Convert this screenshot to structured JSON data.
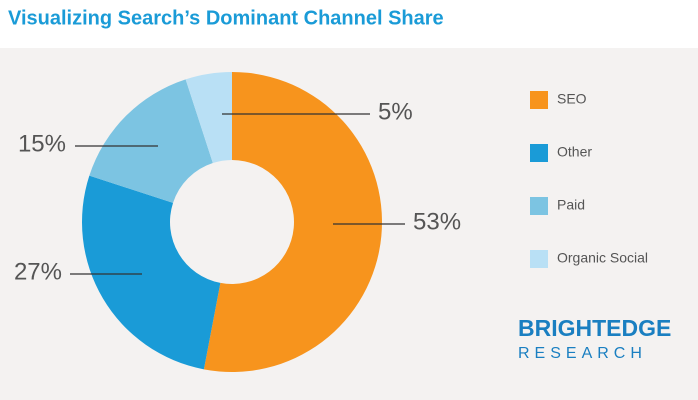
{
  "chart_data": {
    "type": "donut",
    "title": "Visualizing Search’s Dominant Channel Share",
    "categories": [
      "SEO",
      "Other",
      "Paid",
      "Organic Social"
    ],
    "values": [
      53,
      27,
      15,
      5
    ],
    "value_labels": [
      "53%",
      "27%",
      "15%",
      "5%"
    ],
    "colors": [
      "#f7941d",
      "#1a9bd7",
      "#7cc4e2",
      "#b9e0f5"
    ],
    "legend": "right",
    "brand": {
      "name": "BRIGHTEDGE",
      "sub": "RESEARCH"
    }
  }
}
